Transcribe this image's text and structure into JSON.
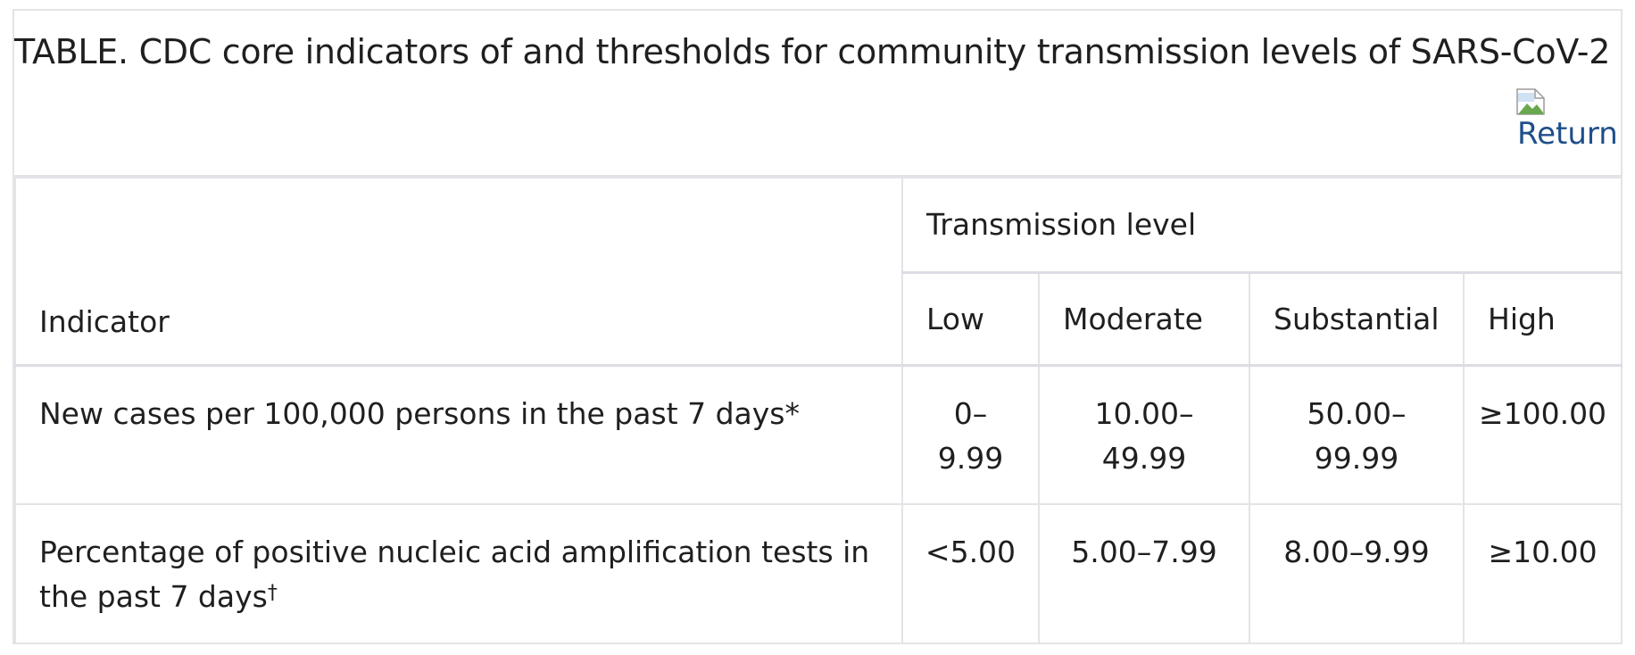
{
  "caption": {
    "title": "TABLE. CDC core indicators of and thresholds for community transmission levels of SARS-CoV-2",
    "return_link_text": "Return"
  },
  "table": {
    "indicator_header": "Indicator",
    "group_header": "Transmission level",
    "level_headers": [
      "Low",
      "Moderate",
      "Substantial",
      "High"
    ],
    "rows": [
      {
        "indicator": "New cases per 100,000 persons in the past 7 days",
        "footnote_mark": "*",
        "values": [
          "0–9.99",
          "10.00–49.99",
          "50.00–99.99",
          "≥100.00"
        ]
      },
      {
        "indicator": "Percentage of positive nucleic acid amplification tests in the past 7 days",
        "footnote_mark": "†",
        "values": [
          "<5.00",
          "5.00–7.99",
          "8.00–9.99",
          "≥10.00"
        ]
      }
    ]
  },
  "icons": {
    "broken_image": "broken-image-icon"
  }
}
